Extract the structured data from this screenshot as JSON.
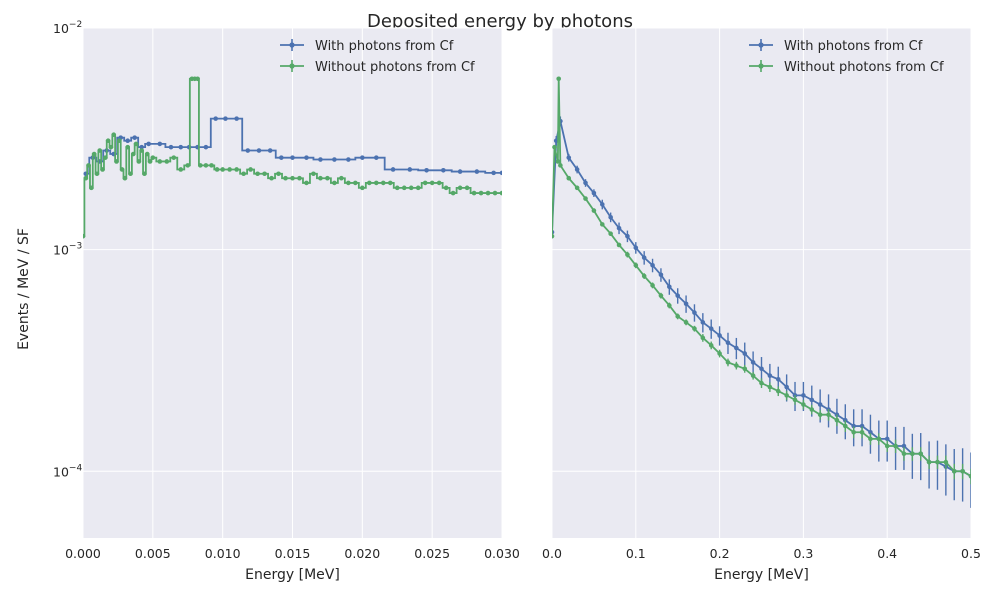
{
  "figure": {
    "title": "Deposited energy by photons"
  },
  "colors": {
    "with": "#4c72b0",
    "without": "#55a868",
    "panel_bg": "#eaeaf2",
    "grid": "#ffffff"
  },
  "chart_data": [
    {
      "type": "line",
      "title": "",
      "xlabel": "Energy [MeV]",
      "ylabel": "Events / MeV / SF",
      "xlim": [
        0.0,
        0.03
      ],
      "ylim": [
        5e-05,
        0.01
      ],
      "yscale": "log",
      "grid": true,
      "legend": "top-right",
      "xticks": [
        {
          "value": 0.0,
          "label": "0.000"
        },
        {
          "value": 0.005,
          "label": "0.005"
        },
        {
          "value": 0.01,
          "label": "0.010"
        },
        {
          "value": 0.015,
          "label": "0.015"
        },
        {
          "value": 0.02,
          "label": "0.020"
        },
        {
          "value": 0.025,
          "label": "0.025"
        },
        {
          "value": 0.03,
          "label": "0.030"
        }
      ],
      "yticks": [
        {
          "value": 0.0001,
          "base": "10",
          "exp": "−4"
        },
        {
          "value": 0.001,
          "base": "10",
          "exp": "−3"
        },
        {
          "value": 0.01,
          "base": "10",
          "exp": "−2"
        }
      ],
      "series": [
        {
          "name": "With photons from Cf",
          "color": "#4c72b0",
          "drawstyle": "steps-mid",
          "x": [
            0.0002,
            0.0007,
            0.0012,
            0.0017,
            0.0022,
            0.0027,
            0.0032,
            0.0037,
            0.0042,
            0.0047,
            0.0055,
            0.0063,
            0.007,
            0.0076,
            0.0082,
            0.0088,
            0.0095,
            0.0102,
            0.011,
            0.0118,
            0.0126,
            0.0134,
            0.0142,
            0.015,
            0.016,
            0.017,
            0.018,
            0.019,
            0.02,
            0.021,
            0.0222,
            0.0234,
            0.0246,
            0.0258,
            0.027,
            0.0282,
            0.0294,
            0.03
          ],
          "y": [
            0.0022,
            0.0026,
            0.0025,
            0.0028,
            0.0027,
            0.0032,
            0.0031,
            0.0032,
            0.0029,
            0.003,
            0.003,
            0.0029,
            0.0029,
            0.0029,
            0.0029,
            0.0029,
            0.0039,
            0.0039,
            0.0039,
            0.0028,
            0.0028,
            0.0028,
            0.0026,
            0.0026,
            0.0026,
            0.00255,
            0.00255,
            0.00255,
            0.0026,
            0.0026,
            0.0023,
            0.0023,
            0.00228,
            0.00228,
            0.00225,
            0.00225,
            0.00222,
            0.00222
          ]
        },
        {
          "name": "Without photons from Cf",
          "color": "#55a868",
          "drawstyle": "steps-mid",
          "x": [
            0.0,
            0.0002,
            0.0004,
            0.0006,
            0.0008,
            0.001,
            0.0012,
            0.0014,
            0.0016,
            0.0018,
            0.002,
            0.0022,
            0.0024,
            0.0026,
            0.0028,
            0.003,
            0.0032,
            0.0034,
            0.0036,
            0.0038,
            0.004,
            0.0042,
            0.0044,
            0.0046,
            0.0048,
            0.005,
            0.0055,
            0.006,
            0.0065,
            0.007,
            0.0075,
            0.0078,
            0.008,
            0.0082,
            0.0084,
            0.0088,
            0.0092,
            0.0096,
            0.01,
            0.0105,
            0.011,
            0.0115,
            0.012,
            0.0125,
            0.013,
            0.0135,
            0.014,
            0.0145,
            0.015,
            0.0155,
            0.016,
            0.0165,
            0.017,
            0.0175,
            0.018,
            0.0185,
            0.019,
            0.0195,
            0.02,
            0.0205,
            0.021,
            0.0215,
            0.022,
            0.0225,
            0.023,
            0.0235,
            0.024,
            0.0245,
            0.025,
            0.0255,
            0.026,
            0.0265,
            0.027,
            0.0275,
            0.028,
            0.0285,
            0.029,
            0.0295,
            0.03
          ],
          "y": [
            0.00115,
            0.0021,
            0.0024,
            0.0019,
            0.0027,
            0.0022,
            0.0028,
            0.0023,
            0.0026,
            0.0031,
            0.0029,
            0.0033,
            0.0025,
            0.0031,
            0.0023,
            0.0021,
            0.0029,
            0.0022,
            0.0027,
            0.003,
            0.0025,
            0.0028,
            0.0022,
            0.0027,
            0.0025,
            0.0026,
            0.0025,
            0.0025,
            0.0026,
            0.0023,
            0.0024,
            0.0059,
            0.0059,
            0.0059,
            0.0024,
            0.0024,
            0.0024,
            0.0023,
            0.0023,
            0.0023,
            0.0023,
            0.0022,
            0.0023,
            0.0022,
            0.0022,
            0.0021,
            0.0022,
            0.0021,
            0.0021,
            0.0021,
            0.002,
            0.0022,
            0.0021,
            0.0021,
            0.002,
            0.0021,
            0.002,
            0.002,
            0.0019,
            0.002,
            0.002,
            0.002,
            0.002,
            0.0019,
            0.0019,
            0.0019,
            0.0019,
            0.002,
            0.002,
            0.002,
            0.0019,
            0.0018,
            0.0019,
            0.0019,
            0.0018,
            0.0018,
            0.0018,
            0.0018,
            0.0018
          ]
        }
      ]
    },
    {
      "type": "line",
      "title": "",
      "xlabel": "Energy [MeV]",
      "ylabel": "",
      "xlim": [
        0.0,
        0.5
      ],
      "ylim": [
        5e-05,
        0.01
      ],
      "yscale": "log",
      "grid": true,
      "legend": "top-right",
      "xticks": [
        {
          "value": 0.0,
          "label": "0.0"
        },
        {
          "value": 0.1,
          "label": "0.1"
        },
        {
          "value": 0.2,
          "label": "0.2"
        },
        {
          "value": 0.3,
          "label": "0.3"
        },
        {
          "value": 0.4,
          "label": "0.4"
        },
        {
          "value": 0.5,
          "label": "0.5"
        }
      ],
      "yticks": [],
      "series": [
        {
          "name": "With photons from Cf",
          "color": "#4c72b0",
          "drawstyle": "line",
          "x": [
            0.0,
            0.005,
            0.01,
            0.02,
            0.03,
            0.04,
            0.05,
            0.06,
            0.07,
            0.08,
            0.09,
            0.1,
            0.11,
            0.12,
            0.13,
            0.14,
            0.15,
            0.16,
            0.17,
            0.18,
            0.19,
            0.2,
            0.21,
            0.22,
            0.23,
            0.24,
            0.25,
            0.26,
            0.27,
            0.28,
            0.29,
            0.3,
            0.31,
            0.32,
            0.33,
            0.34,
            0.35,
            0.36,
            0.37,
            0.38,
            0.39,
            0.4,
            0.41,
            0.42,
            0.43,
            0.44,
            0.45,
            0.46,
            0.47,
            0.48,
            0.49,
            0.5
          ],
          "y": [
            0.0012,
            0.0031,
            0.0038,
            0.0026,
            0.0023,
            0.002,
            0.0018,
            0.0016,
            0.0014,
            0.00125,
            0.00115,
            0.00102,
            0.00092,
            0.00085,
            0.00077,
            0.00068,
            0.00062,
            0.00057,
            0.00052,
            0.00047,
            0.00044,
            0.00041,
            0.00038,
            0.00036,
            0.00034,
            0.00031,
            0.00029,
            0.00027,
            0.00026,
            0.00024,
            0.00022,
            0.00022,
            0.00021,
            0.0002,
            0.00019,
            0.00018,
            0.00017,
            0.00016,
            0.00016,
            0.00015,
            0.00014,
            0.00014,
            0.00013,
            0.00013,
            0.00012,
            0.00012,
            0.00011,
            0.00011,
            0.000105,
            0.0001,
            0.0001,
            9.5e-05
          ],
          "yerr_frac": [
            0.05,
            0.05,
            0.05,
            0.04,
            0.04,
            0.04,
            0.04,
            0.05,
            0.05,
            0.06,
            0.06,
            0.06,
            0.07,
            0.07,
            0.07,
            0.08,
            0.08,
            0.09,
            0.09,
            0.1,
            0.1,
            0.1,
            0.11,
            0.11,
            0.12,
            0.12,
            0.13,
            0.13,
            0.14,
            0.14,
            0.15,
            0.15,
            0.16,
            0.17,
            0.17,
            0.18,
            0.18,
            0.19,
            0.19,
            0.2,
            0.21,
            0.21,
            0.22,
            0.22,
            0.23,
            0.24,
            0.24,
            0.25,
            0.26,
            0.26,
            0.27,
            0.28
          ]
        },
        {
          "name": "Without photons from Cf",
          "color": "#55a868",
          "drawstyle": "line",
          "x": [
            0.0,
            0.003,
            0.007,
            0.008,
            0.01,
            0.02,
            0.03,
            0.04,
            0.05,
            0.06,
            0.07,
            0.08,
            0.09,
            0.1,
            0.11,
            0.12,
            0.13,
            0.14,
            0.15,
            0.16,
            0.17,
            0.18,
            0.19,
            0.2,
            0.21,
            0.22,
            0.23,
            0.24,
            0.25,
            0.26,
            0.27,
            0.28,
            0.29,
            0.3,
            0.31,
            0.32,
            0.33,
            0.34,
            0.35,
            0.36,
            0.37,
            0.38,
            0.39,
            0.4,
            0.41,
            0.42,
            0.43,
            0.44,
            0.45,
            0.46,
            0.47,
            0.48,
            0.49,
            0.5
          ],
          "y": [
            0.00115,
            0.0029,
            0.0025,
            0.0059,
            0.0024,
            0.0021,
            0.0019,
            0.0017,
            0.0015,
            0.0013,
            0.00118,
            0.00105,
            0.00095,
            0.00085,
            0.00076,
            0.00069,
            0.00062,
            0.00056,
            0.0005,
            0.00047,
            0.00044,
            0.0004,
            0.00037,
            0.00034,
            0.00031,
            0.0003,
            0.00029,
            0.00027,
            0.00025,
            0.00024,
            0.00023,
            0.00022,
            0.00021,
            0.0002,
            0.00019,
            0.00018,
            0.00018,
            0.00017,
            0.00016,
            0.00015,
            0.00015,
            0.00014,
            0.00014,
            0.00013,
            0.00013,
            0.00012,
            0.00012,
            0.00012,
            0.00011,
            0.00011,
            0.00011,
            0.0001,
            0.0001,
            9.5e-05
          ],
          "yerr_frac": [
            0.02,
            0.02,
            0.02,
            0.02,
            0.02,
            0.02,
            0.02,
            0.02,
            0.02,
            0.02,
            0.02,
            0.02,
            0.03,
            0.03,
            0.03,
            0.03,
            0.03,
            0.03,
            0.03,
            0.03,
            0.03,
            0.04,
            0.04,
            0.04,
            0.04,
            0.04,
            0.04,
            0.04,
            0.05,
            0.05,
            0.05,
            0.05,
            0.05,
            0.05,
            0.05,
            0.05,
            0.06,
            0.06,
            0.06,
            0.06,
            0.06,
            0.06,
            0.06,
            0.06,
            0.07,
            0.07,
            0.07,
            0.07,
            0.07,
            0.07,
            0.07,
            0.08,
            0.08,
            0.08
          ]
        }
      ]
    }
  ]
}
